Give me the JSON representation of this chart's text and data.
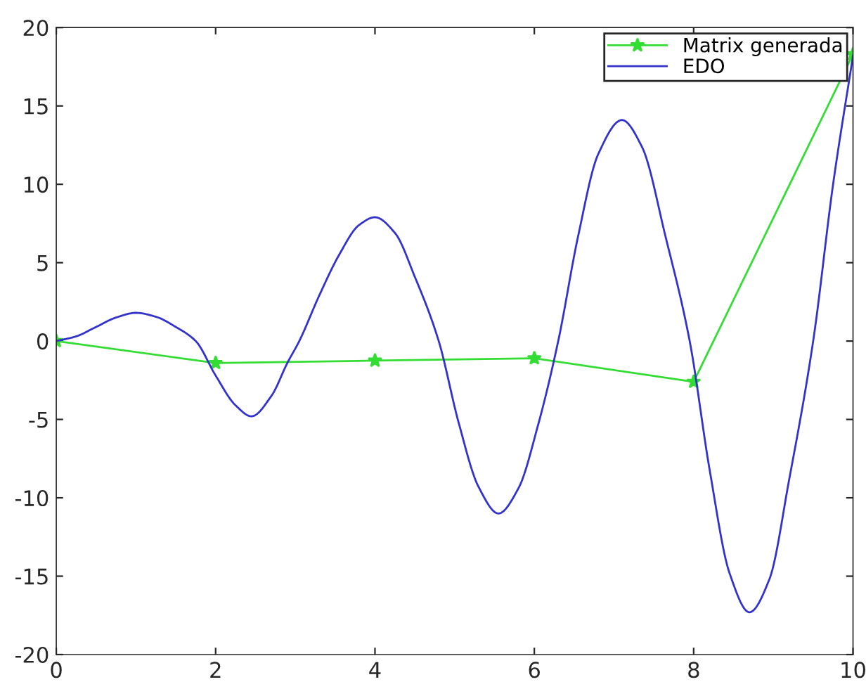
{
  "chart_data": {
    "type": "line",
    "xlim": [
      0,
      10
    ],
    "ylim": [
      -20,
      20
    ],
    "xticks": [
      0,
      2,
      4,
      6,
      8,
      10
    ],
    "yticks": [
      -20,
      -15,
      -10,
      -5,
      0,
      5,
      10,
      15,
      20
    ],
    "grid": false,
    "legend": "top right",
    "series": [
      {
        "name": "Matrix generada",
        "color": "#33dd33",
        "marker": "star",
        "x": [
          0,
          2,
          4,
          6,
          8,
          10
        ],
        "values": [
          0,
          -1.4,
          -1.25,
          -1.1,
          -2.6,
          18.3
        ]
      },
      {
        "name": "EDO",
        "color": "#3333cc",
        "marker": "none",
        "x": [
          0,
          0.25,
          0.5,
          0.75,
          1.0,
          1.25,
          1.5,
          1.75,
          2.0,
          2.25,
          2.45,
          2.7,
          2.9,
          3.05,
          3.3,
          3.55,
          3.8,
          4.0,
          4.25,
          4.5,
          4.8,
          5.05,
          5.3,
          5.55,
          5.8,
          6.05,
          6.3,
          6.55,
          6.8,
          7.1,
          7.35,
          7.65,
          7.95,
          8.2,
          8.45,
          8.7,
          8.95,
          9.2,
          9.5,
          9.75,
          10
        ],
        "values": [
          0,
          0.3,
          0.9,
          1.5,
          1.8,
          1.55,
          0.9,
          0,
          -2.2,
          -4.1,
          -4.8,
          -3.5,
          -1.4,
          0,
          2.9,
          5.5,
          7.4,
          7.9,
          6.9,
          4.1,
          0,
          -5.2,
          -9.3,
          -11,
          -9.4,
          -5.3,
          0,
          6.7,
          11.9,
          14.1,
          12.4,
          6.6,
          0,
          -8.2,
          -14.8,
          -17.3,
          -15.2,
          -8.8,
          0,
          10,
          18.2
        ]
      }
    ]
  }
}
